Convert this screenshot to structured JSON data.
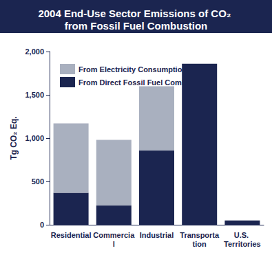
{
  "chart_data": {
    "type": "bar",
    "title": "2004 End-Use Sector Emissions of CO₂ from Fossil Fuel Combustion",
    "y_label": "Tg CO₂ Eq.",
    "categories": [
      "Residential",
      "Commercial",
      "Industrial",
      "Transportation",
      "U.S. Territories"
    ],
    "series": [
      {
        "name": "From Direct Fossil Fuel Combustion",
        "color": "#1b2550",
        "values": [
          370,
          225,
          860,
          1860,
          50
        ]
      },
      {
        "name": "From Electricity Consumption",
        "color": "#a9b0bf",
        "values": [
          800,
          755,
          740,
          0,
          0
        ]
      }
    ],
    "stacked": true,
    "ylim": [
      0,
      2000
    ],
    "yticks": [
      0,
      500,
      {
        "value": 1000,
        "label": "1,000"
      },
      {
        "value": 1500,
        "label": "1,500"
      },
      {
        "value": 2000,
        "label": "2,000"
      }
    ],
    "grid": false,
    "legend": "top-left"
  }
}
